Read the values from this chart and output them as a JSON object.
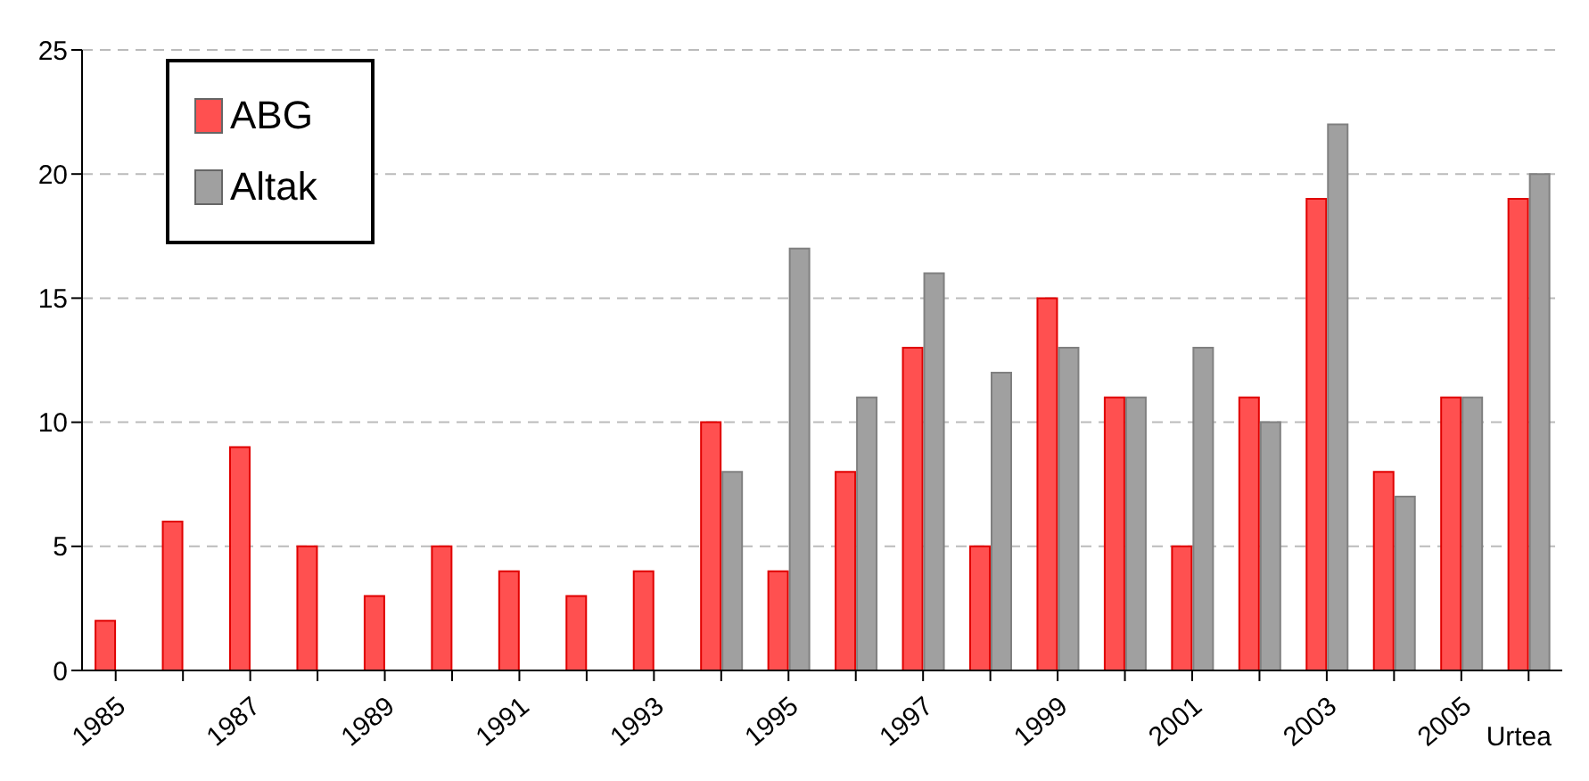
{
  "chart_data": {
    "type": "bar",
    "xlabel": "Urtea",
    "categories": [
      "1985",
      null,
      "1987",
      null,
      "1989",
      null,
      "1991",
      null,
      "1993",
      null,
      "1995",
      null,
      "1997",
      null,
      "1999",
      null,
      "2001",
      null,
      "2003",
      null,
      "2005",
      null
    ],
    "series": [
      {
        "name": "ABG",
        "color": "#ff5050",
        "values": [
          2,
          6,
          9,
          5,
          3,
          5,
          4,
          3,
          4,
          10,
          4,
          8,
          13,
          5,
          15,
          11,
          5,
          11,
          19,
          8,
          11,
          19
        ]
      },
      {
        "name": "Altak",
        "color": "#a0a0a0",
        "values": [
          null,
          null,
          null,
          null,
          null,
          null,
          null,
          null,
          null,
          8,
          17,
          11,
          16,
          12,
          13,
          11,
          13,
          10,
          22,
          7,
          11,
          20
        ]
      }
    ],
    "ylim": [
      0,
      25
    ],
    "yticks": [
      0,
      5,
      10,
      15,
      20,
      25
    ],
    "grid": "y",
    "legend": "top left"
  }
}
